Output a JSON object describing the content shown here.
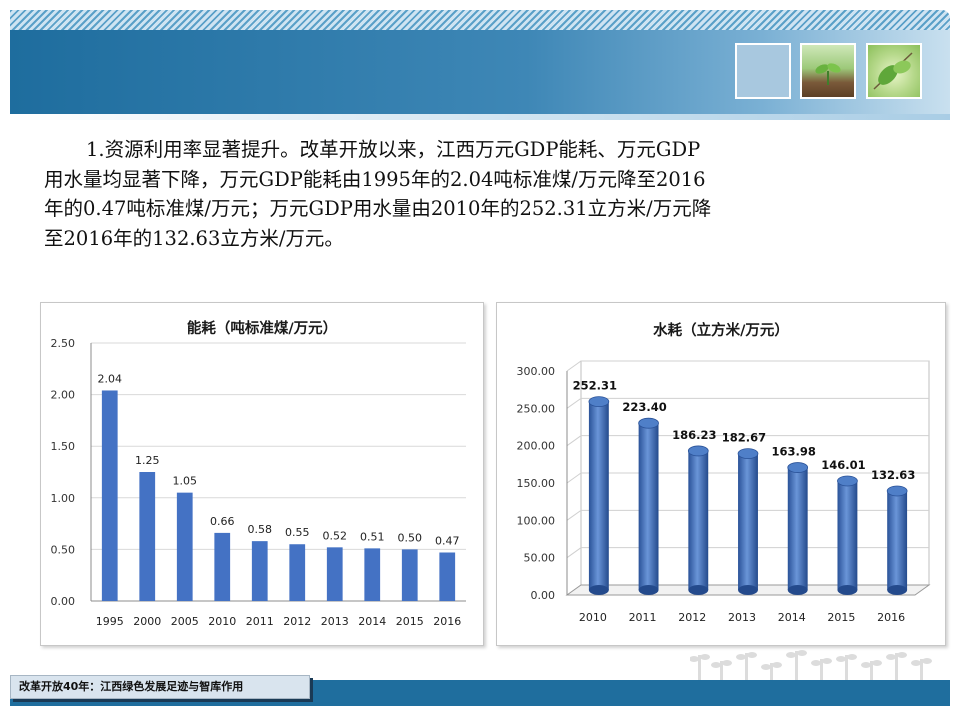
{
  "paragraph": {
    "lines": [
      "1.资源利用率显著提升。改革开放以来，江西万元GDP能耗、万元GDP",
      "用水量均显著下降，万元GDP能耗由1995年的2.04吨标准煤/万元降至2016",
      "年的0.47吨标准煤/万元；万元GDP用水量由2010年的252.31立方米/万元降",
      "至2016年的132.63立方米/万元。"
    ]
  },
  "footer": {
    "label": "改革开放40年：江西绿色发展足迹与智库作用"
  },
  "colors": {
    "bar": "#4472c4",
    "banner": "#1e6d9e",
    "footer_bar": "#1f6e9e"
  },
  "chart_data": [
    {
      "type": "bar",
      "title": "能耗（吨标准煤/万元）",
      "categories": [
        "1995",
        "2000",
        "2005",
        "2010",
        "2011",
        "2012",
        "2013",
        "2014",
        "2015",
        "2016"
      ],
      "values": [
        2.04,
        1.25,
        1.05,
        0.66,
        0.58,
        0.55,
        0.52,
        0.51,
        0.5,
        0.47
      ],
      "data_labels": [
        "2.04",
        "1.25",
        "1.05",
        "0.66",
        "0.58",
        "0.55",
        "0.52",
        "0.51",
        "0.50",
        "0.47"
      ],
      "ylim": [
        0,
        2.5
      ],
      "yticks": [
        "0.00",
        "0.50",
        "1.00",
        "1.50",
        "2.00",
        "2.50"
      ],
      "grid": true
    },
    {
      "type": "bar",
      "title": "水耗（立方米/万元）",
      "categories": [
        "2010",
        "2011",
        "2012",
        "2013",
        "2014",
        "2015",
        "2016"
      ],
      "values": [
        252.31,
        223.4,
        186.23,
        182.67,
        163.98,
        146.01,
        132.63
      ],
      "data_labels": [
        "252.31",
        "223.40",
        "186.23",
        "182.67",
        "163.98",
        "146.01",
        "132.63"
      ],
      "ylim": [
        0,
        300
      ],
      "yticks": [
        "0.00",
        "50.00",
        "100.00",
        "150.00",
        "200.00",
        "250.00",
        "300.00"
      ],
      "grid": true,
      "style": "3d-cylinder"
    }
  ]
}
